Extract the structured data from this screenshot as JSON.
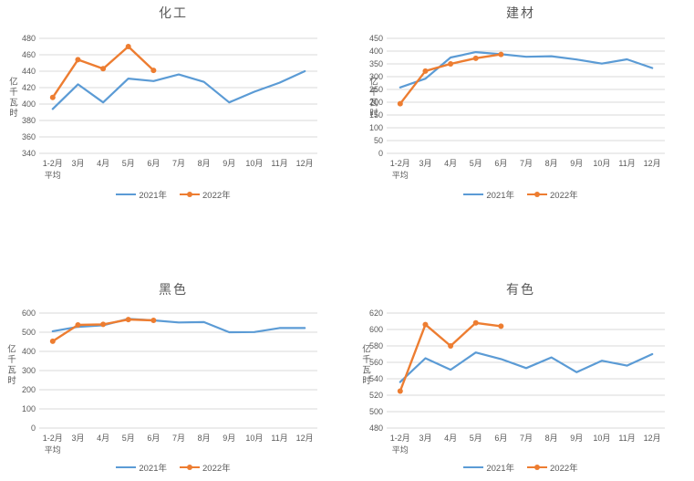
{
  "page": {
    "background": "#ffffff"
  },
  "colors": {
    "series_2021": "#5B9BD5",
    "series_2022": "#ED7D31",
    "gridline": "#D9D9D9",
    "text": "#595959"
  },
  "chart_data": [
    {
      "type": "line",
      "title": "化工",
      "ylabel": "亿千瓦时",
      "ylim": [
        340,
        480
      ],
      "ystep": 20,
      "grid": "horizontal",
      "legend_position": "bottom",
      "categories": [
        "1-2月\n平均",
        "3月",
        "4月",
        "5月",
        "6月",
        "7月",
        "8月",
        "9月",
        "10月",
        "11月",
        "12月"
      ],
      "series": [
        {
          "name": "2021年",
          "color": "#5B9BD5",
          "markers": false,
          "values": [
            394,
            424,
            402,
            431,
            428,
            436,
            427,
            402,
            415,
            426,
            440
          ]
        },
        {
          "name": "2022年",
          "color": "#ED7D31",
          "markers": true,
          "values": [
            408,
            454,
            443,
            470,
            441
          ]
        }
      ]
    },
    {
      "type": "line",
      "title": "建材",
      "ylabel": "亿千瓦时",
      "ylim": [
        0,
        450
      ],
      "ystep": 50,
      "grid": "horizontal",
      "legend_position": "bottom",
      "categories": [
        "1-2月\n平均",
        "3月",
        "4月",
        "5月",
        "6月",
        "7月",
        "8月",
        "9月",
        "10月",
        "11月",
        "12月"
      ],
      "series": [
        {
          "name": "2021年",
          "color": "#5B9BD5",
          "markers": false,
          "values": [
            258,
            292,
            375,
            396,
            388,
            378,
            380,
            367,
            351,
            368,
            334
          ]
        },
        {
          "name": "2022年",
          "color": "#ED7D31",
          "markers": true,
          "values": [
            194,
            322,
            350,
            372,
            387
          ]
        }
      ]
    },
    {
      "type": "line",
      "title": "黑色",
      "ylabel": "亿千瓦时",
      "ylim": [
        0,
        600
      ],
      "ystep": 100,
      "grid": "horizontal",
      "legend_position": "bottom",
      "categories": [
        "1-2月\n平均",
        "3月",
        "4月",
        "5月",
        "6月",
        "7月",
        "8月",
        "9月",
        "10月",
        "11月",
        "12月"
      ],
      "series": [
        {
          "name": "2021年",
          "color": "#5B9BD5",
          "markers": false,
          "values": [
            505,
            528,
            536,
            570,
            562,
            551,
            553,
            500,
            501,
            522,
            522
          ]
        },
        {
          "name": "2022年",
          "color": "#ED7D31",
          "markers": true,
          "values": [
            453,
            538,
            541,
            566,
            562
          ]
        }
      ]
    },
    {
      "type": "line",
      "title": "有色",
      "ylabel": "亿千瓦时",
      "ylim": [
        480,
        620
      ],
      "ystep": 20,
      "grid": "horizontal",
      "legend_position": "bottom",
      "categories": [
        "1-2月\n平均",
        "3月",
        "4月",
        "5月",
        "6月",
        "7月",
        "8月",
        "9月",
        "10月",
        "11月",
        "12月"
      ],
      "series": [
        {
          "name": "2021年",
          "color": "#5B9BD5",
          "markers": false,
          "values": [
            536,
            565,
            551,
            572,
            564,
            553,
            566,
            548,
            562,
            556,
            570
          ]
        },
        {
          "name": "2022年",
          "color": "#ED7D31",
          "markers": true,
          "values": [
            525,
            606,
            580,
            608,
            604
          ]
        }
      ]
    }
  ]
}
